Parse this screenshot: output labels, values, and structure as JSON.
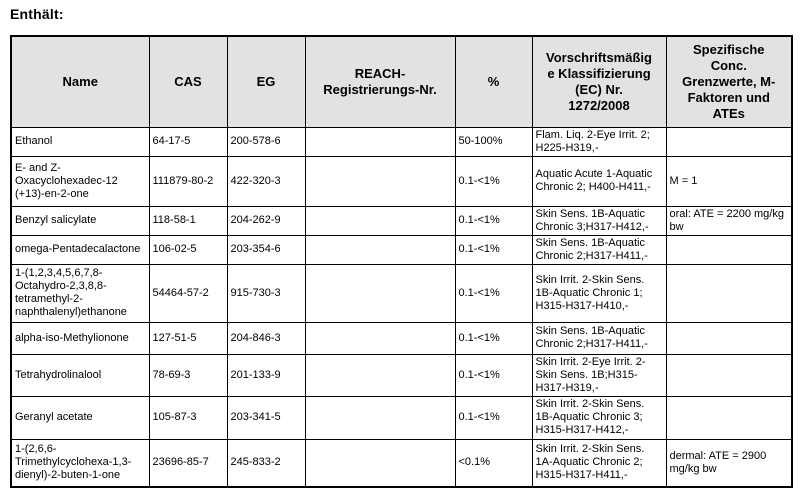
{
  "page": {
    "title": "Enthält:"
  },
  "table": {
    "headers": {
      "name": "Name",
      "cas": "CAS",
      "eg": "EG",
      "reach": "REACH-\nRegistrierungs-Nr.",
      "percent": "%",
      "classification": "Vorschriftsmäßig\ne Klassifizierung\n(EC) Nr.\n1272/2008",
      "limits": "Spezifische\nConc.\nGrenzwerte, M-\nFaktoren und\nATEs"
    },
    "rows": [
      {
        "name": "Ethanol",
        "cas": "64-17-5",
        "eg": "200-578-6",
        "reach": "",
        "percent": "50-100%",
        "classification": "Flam. Liq. 2-Eye Irrit. 2; H225-H319,-",
        "limits": ""
      },
      {
        "name": "E- and Z-Oxacyclohexadec-12 (+13)-en-2-one",
        "cas": "111879-80-2",
        "eg": "422-320-3",
        "reach": "",
        "percent": "0.1-<1%",
        "classification": "Aquatic Acute 1-Aquatic Chronic 2; H400-H411,-",
        "limits": "M = 1"
      },
      {
        "name": "Benzyl salicylate",
        "cas": "118-58-1",
        "eg": "204-262-9",
        "reach": "",
        "percent": "0.1-<1%",
        "classification": "Skin Sens. 1B-Aquatic Chronic 3;H317-H412,-",
        "limits": "oral: ATE = 2200 mg/kg bw"
      },
      {
        "name": "omega-Pentadecalactone",
        "cas": "106-02-5",
        "eg": "203-354-6",
        "reach": "",
        "percent": "0.1-<1%",
        "classification": "Skin Sens. 1B-Aquatic Chronic 2;H317-H411,-",
        "limits": ""
      },
      {
        "name": "1-(1,2,3,4,5,6,7,8-Octahydro-2,3,8,8-tetramethyl-2-naphthalenyl)ethanone",
        "cas": "54464-57-2",
        "eg": "915-730-3",
        "reach": "",
        "percent": "0.1-<1%",
        "classification": "Skin Irrit. 2-Skin Sens. 1B-Aquatic Chronic 1; H315-H317-H410,-",
        "limits": ""
      },
      {
        "name": "alpha-iso-Methylionone",
        "cas": "127-51-5",
        "eg": "204-846-3",
        "reach": "",
        "percent": "0.1-<1%",
        "classification": "Skin Sens. 1B-Aquatic Chronic 2;H317-H411,-",
        "limits": ""
      },
      {
        "name": "Tetrahydrolinalool",
        "cas": "78-69-3",
        "eg": "201-133-9",
        "reach": "",
        "percent": "0.1-<1%",
        "classification": "Skin Irrit. 2-Eye Irrit. 2-Skin Sens. 1B;H315-H317-H319,-",
        "limits": ""
      },
      {
        "name": "Geranyl acetate",
        "cas": "105-87-3",
        "eg": "203-341-5",
        "reach": "",
        "percent": "0.1-<1%",
        "classification": "Skin Irrit. 2-Skin Sens. 1B-Aquatic Chronic 3; H315-H317-H412,-",
        "limits": ""
      },
      {
        "name": "1-(2,6,6-Trimethylcyclohexa-1,3-dienyl)-2-buten-1-one",
        "cas": "23696-85-7",
        "eg": "245-833-2",
        "reach": "",
        "percent": "<0.1%",
        "classification": "Skin Irrit. 2-Skin Sens. 1A-Aquatic Chronic 2; H315-H317-H411,-",
        "limits": "dermal: ATE = 2900 mg/kg bw"
      }
    ]
  }
}
